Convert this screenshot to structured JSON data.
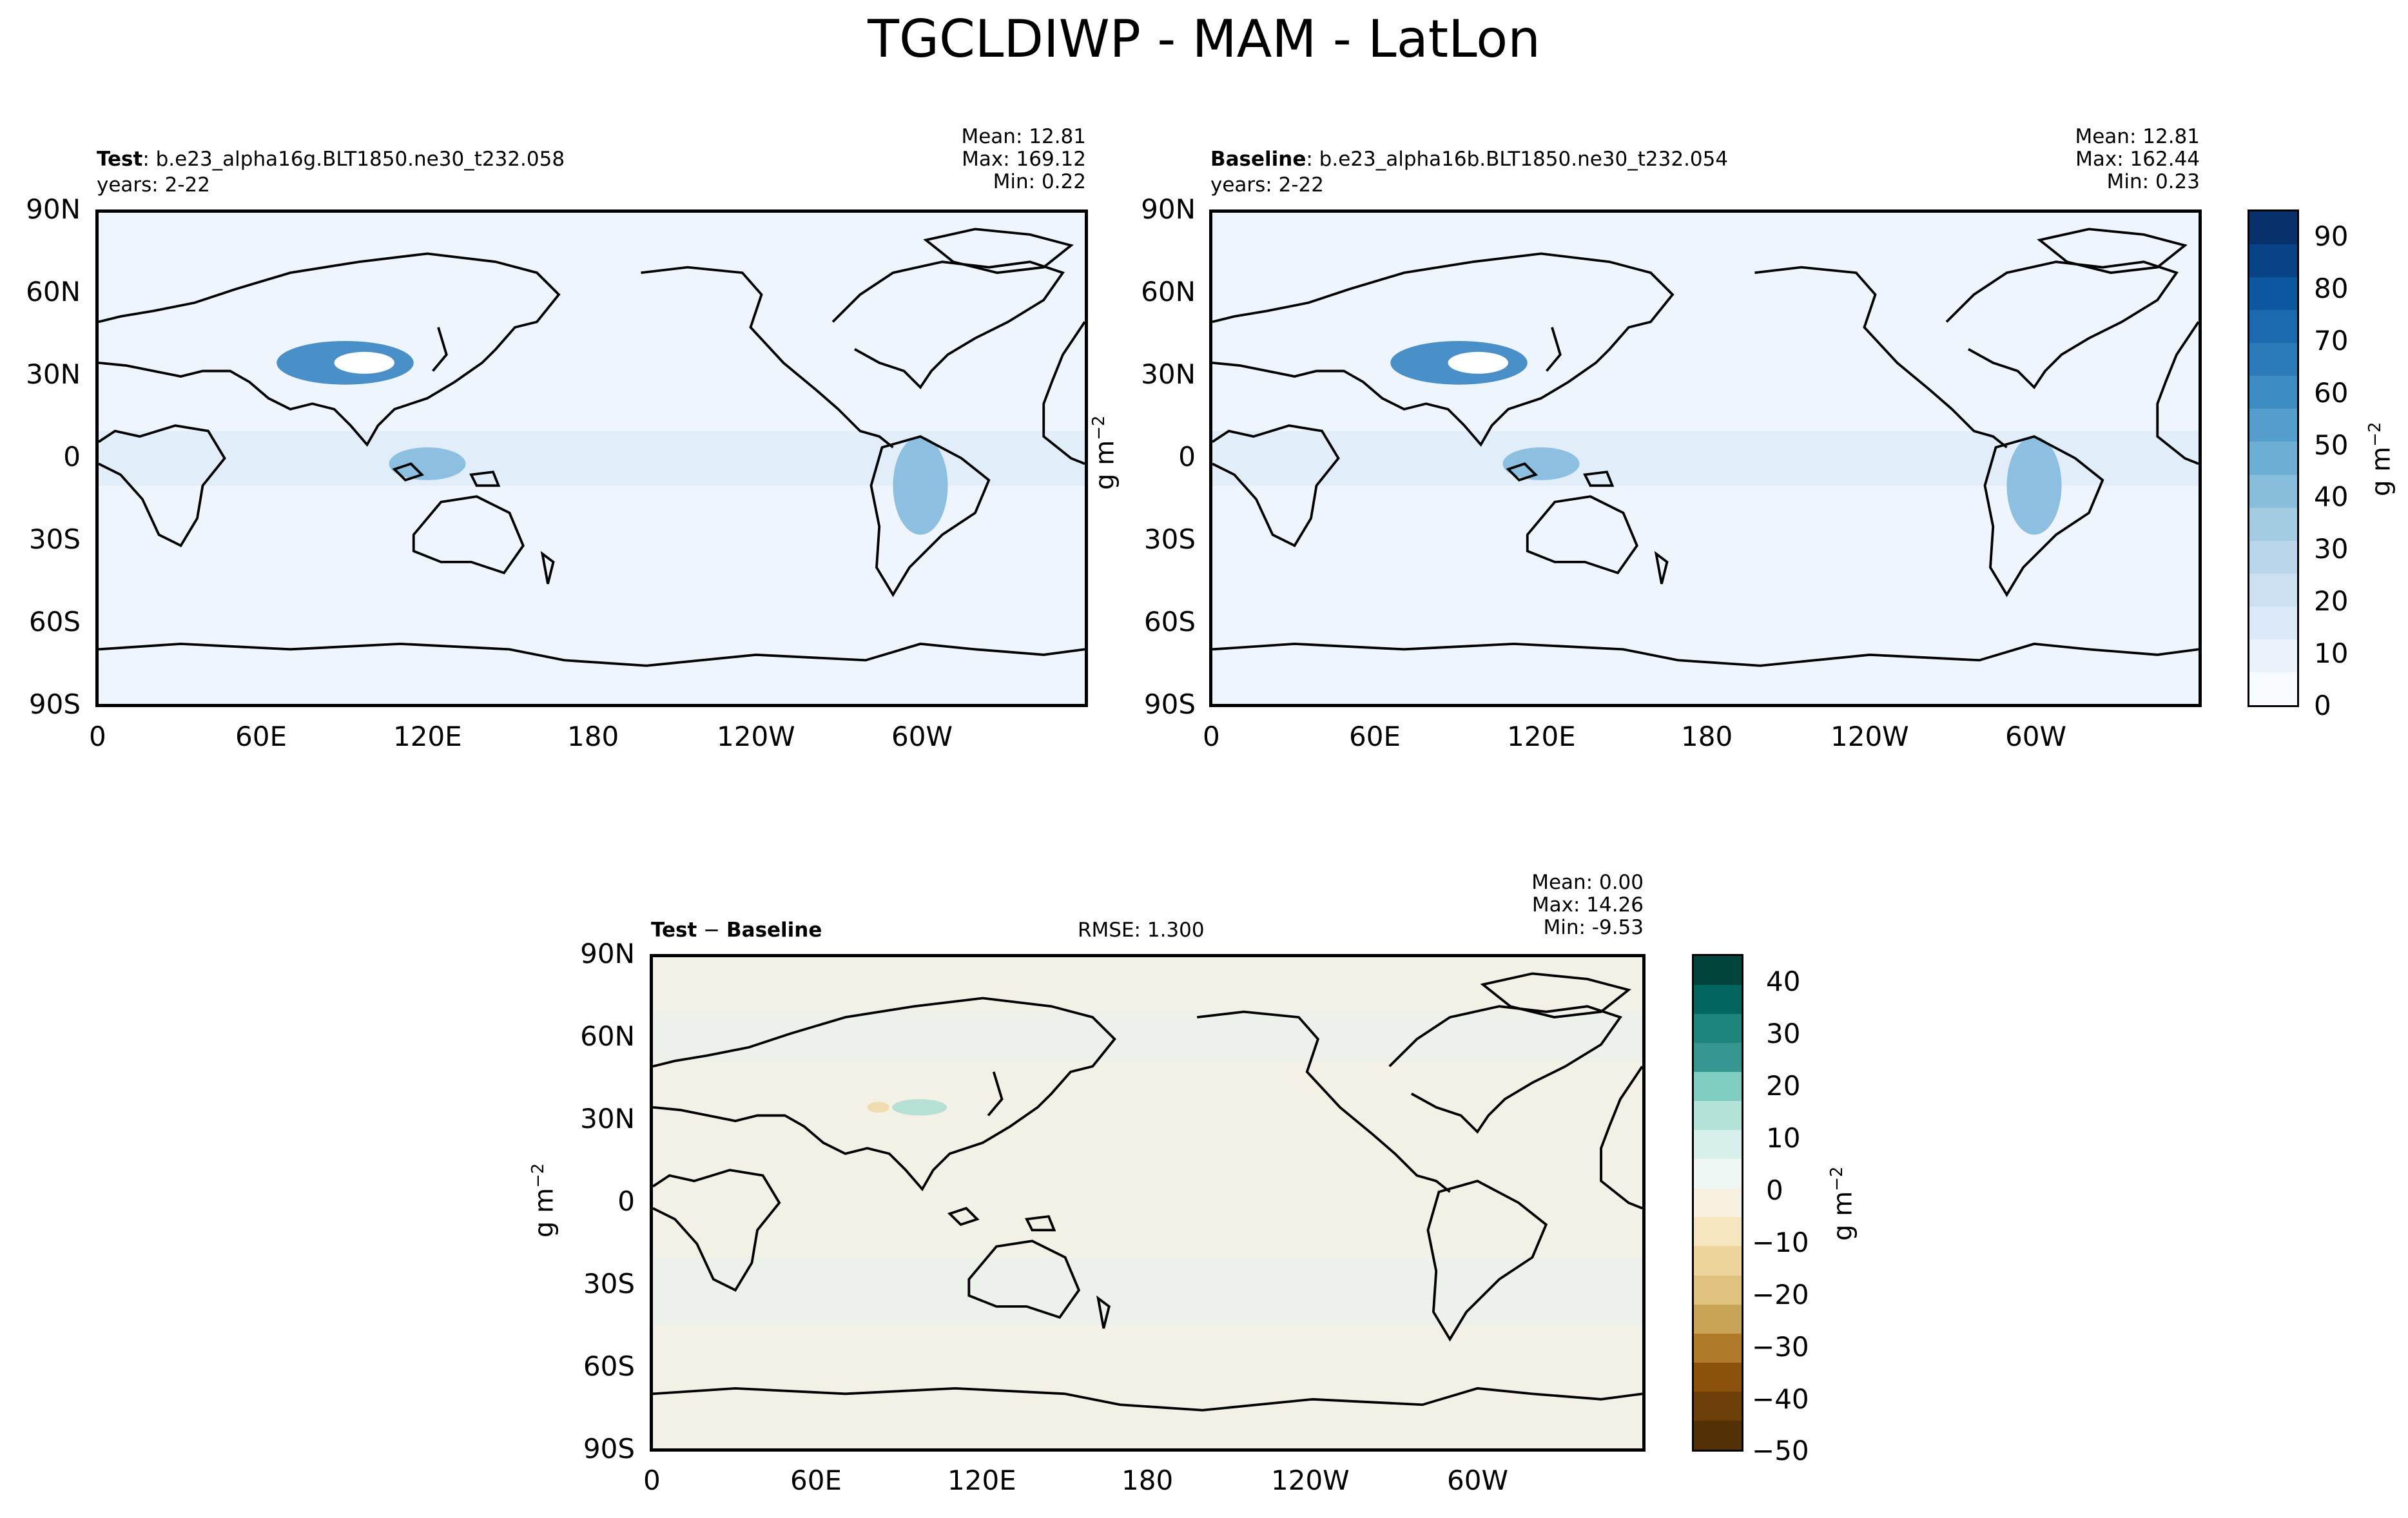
{
  "title": "TGCLDIWP - MAM - LatLon",
  "lat_ticks": [
    "90N",
    "60N",
    "30N",
    "0",
    "30S",
    "60S",
    "90S"
  ],
  "lon_ticks": [
    "0",
    "60E",
    "120E",
    "180",
    "120W",
    "60W"
  ],
  "test": {
    "label": "Test",
    "case": ": b.e23_alpha16g.BLT1850.ne30_t232.058",
    "years": "years: 2-22",
    "mean": "Mean: 12.81",
    "max": "Max: 169.12",
    "min": "Min:  0.22"
  },
  "baseline": {
    "label": "Baseline",
    "case": ": b.e23_alpha16b.BLT1850.ne30_t232.054",
    "years": "years: 2-22",
    "mean": "Mean: 12.81",
    "max": "Max: 162.44",
    "min": "Min:  0.23"
  },
  "diff": {
    "label_a": "Test",
    "minus": " − ",
    "label_b": "Baseline",
    "rmse": "RMSE: 1.300",
    "mean": "Mean:  0.00",
    "max": "Max: 14.26",
    "min": "Min: -9.53"
  },
  "units_main": "g m",
  "units_exp": "−2",
  "colorbar_top": {
    "ticks": [
      "90",
      "80",
      "70",
      "60",
      "50",
      "40",
      "30",
      "20",
      "10",
      "0"
    ],
    "range": [
      0,
      95
    ],
    "colors": [
      "#f7fbff",
      "#eaf2fb",
      "#dbe9f6",
      "#cde0f2",
      "#bad6eb",
      "#a3cce3",
      "#88bedc",
      "#6daed5",
      "#539ecd",
      "#3d8dc4",
      "#2b7bba",
      "#1b69af",
      "#0d57a1",
      "#084387",
      "#08306b"
    ]
  },
  "colorbar_diff": {
    "ticks": [
      "40",
      "30",
      "20",
      "10",
      "0",
      "−10",
      "−20",
      "−30",
      "−40",
      "−50"
    ],
    "range": [
      -50,
      45
    ],
    "colors_top_to_bottom": [
      "#00443b",
      "#01665e",
      "#1d857b",
      "#35978f",
      "#80cdc1",
      "#b3e2d9",
      "#d7f0eb",
      "#eef7f3",
      "#f6f1e1",
      "#f6e6c0",
      "#ecd49a",
      "#dfc27d",
      "#c9a356",
      "#b07b28",
      "#8c510a",
      "#6d400a",
      "#543005"
    ]
  },
  "colors": {
    "ocean_test": "#eef5fc",
    "ocean_diff": "#f3f0e6",
    "land_line": "#000000"
  }
}
